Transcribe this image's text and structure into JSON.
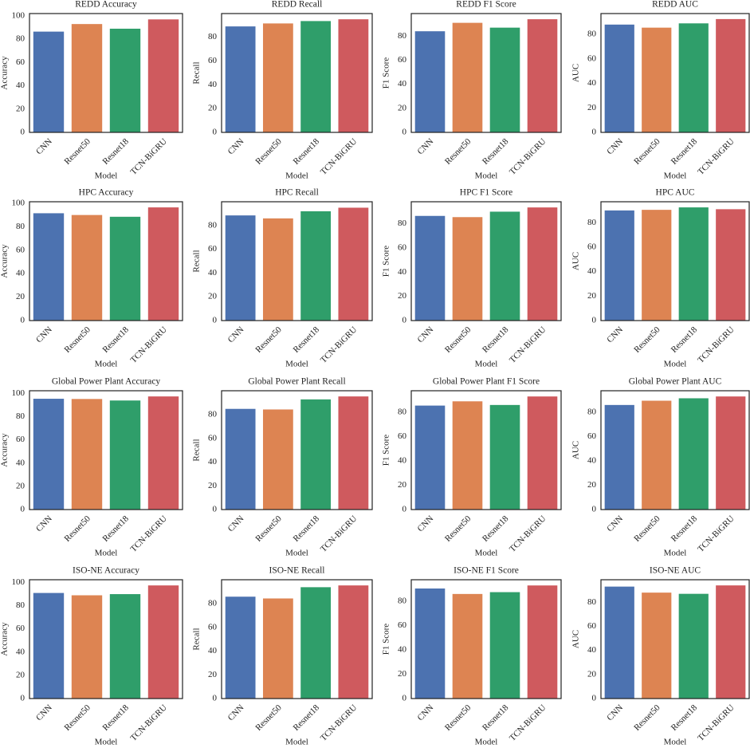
{
  "chart_data": [
    {
      "type": "bar",
      "title": "REDD Accuracy",
      "xlabel": "Model",
      "ylabel": "Accuracy",
      "categories": [
        "CNN",
        "Resnet50",
        "Resnet18",
        "TCN-BiGRU"
      ],
      "values": [
        86.5,
        93,
        89,
        97
      ],
      "colors": [
        "#4c72b0",
        "#dd8452",
        "#2f9e6a",
        "#cf5a5e"
      ],
      "ylim": [
        0,
        102
      ],
      "yticks": [
        0,
        20,
        40,
        60,
        80,
        100
      ]
    },
    {
      "type": "bar",
      "title": "REDD Recall",
      "xlabel": "Model",
      "ylabel": "Recall",
      "categories": [
        "CNN",
        "Resnet50",
        "Resnet18",
        "TCN-BiGRU"
      ],
      "values": [
        89,
        91.5,
        93.5,
        95
      ],
      "colors": [
        "#4c72b0",
        "#dd8452",
        "#2f9e6a",
        "#cf5a5e"
      ],
      "ylim": [
        0,
        99.8
      ],
      "yticks": [
        0,
        20,
        40,
        60,
        80
      ]
    },
    {
      "type": "bar",
      "title": "REDD F1 Score",
      "xlabel": "Model",
      "ylabel": "F1 Score",
      "categories": [
        "CNN",
        "Resnet50",
        "Resnet18",
        "TCN-BiGRU"
      ],
      "values": [
        84,
        91,
        87,
        94
      ],
      "colors": [
        "#4c72b0",
        "#dd8452",
        "#2f9e6a",
        "#cf5a5e"
      ],
      "ylim": [
        0,
        98.7
      ],
      "yticks": [
        0,
        20,
        40,
        60,
        80
      ]
    },
    {
      "type": "bar",
      "title": "REDD AUC",
      "xlabel": "Model",
      "ylabel": "AUC",
      "categories": [
        "CNN",
        "Resnet50",
        "Resnet18",
        "TCN-BiGRU"
      ],
      "values": [
        88,
        85.5,
        89,
        92.5
      ],
      "colors": [
        "#4c72b0",
        "#dd8452",
        "#2f9e6a",
        "#cf5a5e"
      ],
      "ylim": [
        0,
        97
      ],
      "yticks": [
        0,
        20,
        40,
        60,
        80
      ]
    },
    {
      "type": "bar",
      "title": "HPC Accuracy",
      "xlabel": "Model",
      "ylabel": "Accuracy",
      "categories": [
        "CNN",
        "Resnet50",
        "Resnet18",
        "TCN-BiGRU"
      ],
      "values": [
        91.5,
        90,
        88.5,
        96.5
      ],
      "colors": [
        "#4c72b0",
        "#dd8452",
        "#2f9e6a",
        "#cf5a5e"
      ],
      "ylim": [
        0,
        101.3
      ],
      "yticks": [
        0,
        20,
        40,
        60,
        80,
        100
      ]
    },
    {
      "type": "bar",
      "title": "HPC Recall",
      "xlabel": "Model",
      "ylabel": "Recall",
      "categories": [
        "CNN",
        "Resnet50",
        "Resnet18",
        "TCN-BiGRU"
      ],
      "values": [
        88.5,
        86,
        92,
        95
      ],
      "colors": [
        "#4c72b0",
        "#dd8452",
        "#2f9e6a",
        "#cf5a5e"
      ],
      "ylim": [
        0,
        100
      ],
      "yticks": [
        0,
        20,
        40,
        60,
        80
      ]
    },
    {
      "type": "bar",
      "title": "HPC F1 Score",
      "xlabel": "Model",
      "ylabel": "F1 Score",
      "categories": [
        "CNN",
        "Resnet50",
        "Resnet18",
        "TCN-BiGRU"
      ],
      "values": [
        86.5,
        85.5,
        90,
        93.5
      ],
      "colors": [
        "#4c72b0",
        "#dd8452",
        "#2f9e6a",
        "#cf5a5e"
      ],
      "ylim": [
        0,
        98.2
      ],
      "yticks": [
        0,
        20,
        40,
        60,
        80
      ]
    },
    {
      "type": "bar",
      "title": "HPC AUC",
      "xlabel": "Model",
      "ylabel": "AUC",
      "categories": [
        "CNN",
        "Resnet50",
        "Resnet18",
        "TCN-BiGRU"
      ],
      "values": [
        90,
        90.5,
        92.5,
        91
      ],
      "colors": [
        "#4c72b0",
        "#dd8452",
        "#2f9e6a",
        "#cf5a5e"
      ],
      "ylim": [
        0,
        97.1
      ],
      "yticks": [
        0,
        20,
        40,
        60,
        80
      ]
    },
    {
      "type": "bar",
      "title": "Global Power Plant Accuracy",
      "xlabel": "Model",
      "ylabel": "Accuracy",
      "categories": [
        "CNN",
        "Resnet50",
        "Resnet18",
        "TCN-BiGRU"
      ],
      "values": [
        95.5,
        95.3,
        94,
        97.5
      ],
      "colors": [
        "#4c72b0",
        "#dd8452",
        "#2f9e6a",
        "#cf5a5e"
      ],
      "ylim": [
        0,
        102.4
      ],
      "yticks": [
        0,
        20,
        40,
        60,
        80,
        100
      ]
    },
    {
      "type": "bar",
      "title": "Global Power Plant Recall",
      "xlabel": "Model",
      "ylabel": "Recall",
      "categories": [
        "CNN",
        "Resnet50",
        "Resnet18",
        "TCN-BiGRU"
      ],
      "values": [
        85,
        84.5,
        93,
        95.5
      ],
      "colors": [
        "#4c72b0",
        "#dd8452",
        "#2f9e6a",
        "#cf5a5e"
      ],
      "ylim": [
        0,
        100.3
      ],
      "yticks": [
        0,
        20,
        40,
        60,
        80
      ]
    },
    {
      "type": "bar",
      "title": "Global Power Plant F1 Score",
      "xlabel": "Model",
      "ylabel": "F1 Score",
      "categories": [
        "CNN",
        "Resnet50",
        "Resnet18",
        "TCN-BiGRU"
      ],
      "values": [
        85.5,
        89,
        86,
        93
      ],
      "colors": [
        "#4c72b0",
        "#dd8452",
        "#2f9e6a",
        "#cf5a5e"
      ],
      "ylim": [
        0,
        97.7
      ],
      "yticks": [
        0,
        20,
        40,
        60,
        80
      ]
    },
    {
      "type": "bar",
      "title": "Global Power Plant AUC",
      "xlabel": "Model",
      "ylabel": "AUC",
      "categories": [
        "CNN",
        "Resnet50",
        "Resnet18",
        "TCN-BiGRU"
      ],
      "values": [
        86,
        89.5,
        91.5,
        93
      ],
      "colors": [
        "#4c72b0",
        "#dd8452",
        "#2f9e6a",
        "#cf5a5e"
      ],
      "ylim": [
        0,
        97.7
      ],
      "yticks": [
        0,
        20,
        40,
        60,
        80
      ]
    },
    {
      "type": "bar",
      "title": "ISO-NE Accuracy",
      "xlabel": "Model",
      "ylabel": "Accuracy",
      "categories": [
        "CNN",
        "Resnet50",
        "Resnet18",
        "TCN-BiGRU"
      ],
      "values": [
        91,
        89,
        90,
        97.5
      ],
      "colors": [
        "#4c72b0",
        "#dd8452",
        "#2f9e6a",
        "#cf5a5e"
      ],
      "ylim": [
        0,
        102.4
      ],
      "yticks": [
        0,
        20,
        40,
        60,
        80,
        100
      ]
    },
    {
      "type": "bar",
      "title": "ISO-NE Recall",
      "xlabel": "Model",
      "ylabel": "Recall",
      "categories": [
        "CNN",
        "Resnet50",
        "Resnet18",
        "TCN-BiGRU"
      ],
      "values": [
        86,
        84.5,
        94,
        95.5
      ],
      "colors": [
        "#4c72b0",
        "#dd8452",
        "#2f9e6a",
        "#cf5a5e"
      ],
      "ylim": [
        0,
        100.3
      ],
      "yticks": [
        0,
        20,
        40,
        60,
        80
      ]
    },
    {
      "type": "bar",
      "title": "ISO-NE F1 Score",
      "xlabel": "Model",
      "ylabel": "F1 Score",
      "categories": [
        "CNN",
        "Resnet50",
        "Resnet18",
        "TCN-BiGRU"
      ],
      "values": [
        90.5,
        86,
        87.5,
        93
      ],
      "colors": [
        "#4c72b0",
        "#dd8452",
        "#2f9e6a",
        "#cf5a5e"
      ],
      "ylim": [
        0,
        97.7
      ],
      "yticks": [
        0,
        20,
        40,
        60,
        80
      ]
    },
    {
      "type": "bar",
      "title": "ISO-NE AUC",
      "xlabel": "Model",
      "ylabel": "AUC",
      "categories": [
        "CNN",
        "Resnet50",
        "Resnet18",
        "TCN-BiGRU"
      ],
      "values": [
        93,
        88,
        87,
        94
      ],
      "colors": [
        "#4c72b0",
        "#dd8452",
        "#2f9e6a",
        "#cf5a5e"
      ],
      "ylim": [
        0,
        98.7
      ],
      "yticks": [
        0,
        20,
        40,
        60,
        80
      ]
    }
  ]
}
